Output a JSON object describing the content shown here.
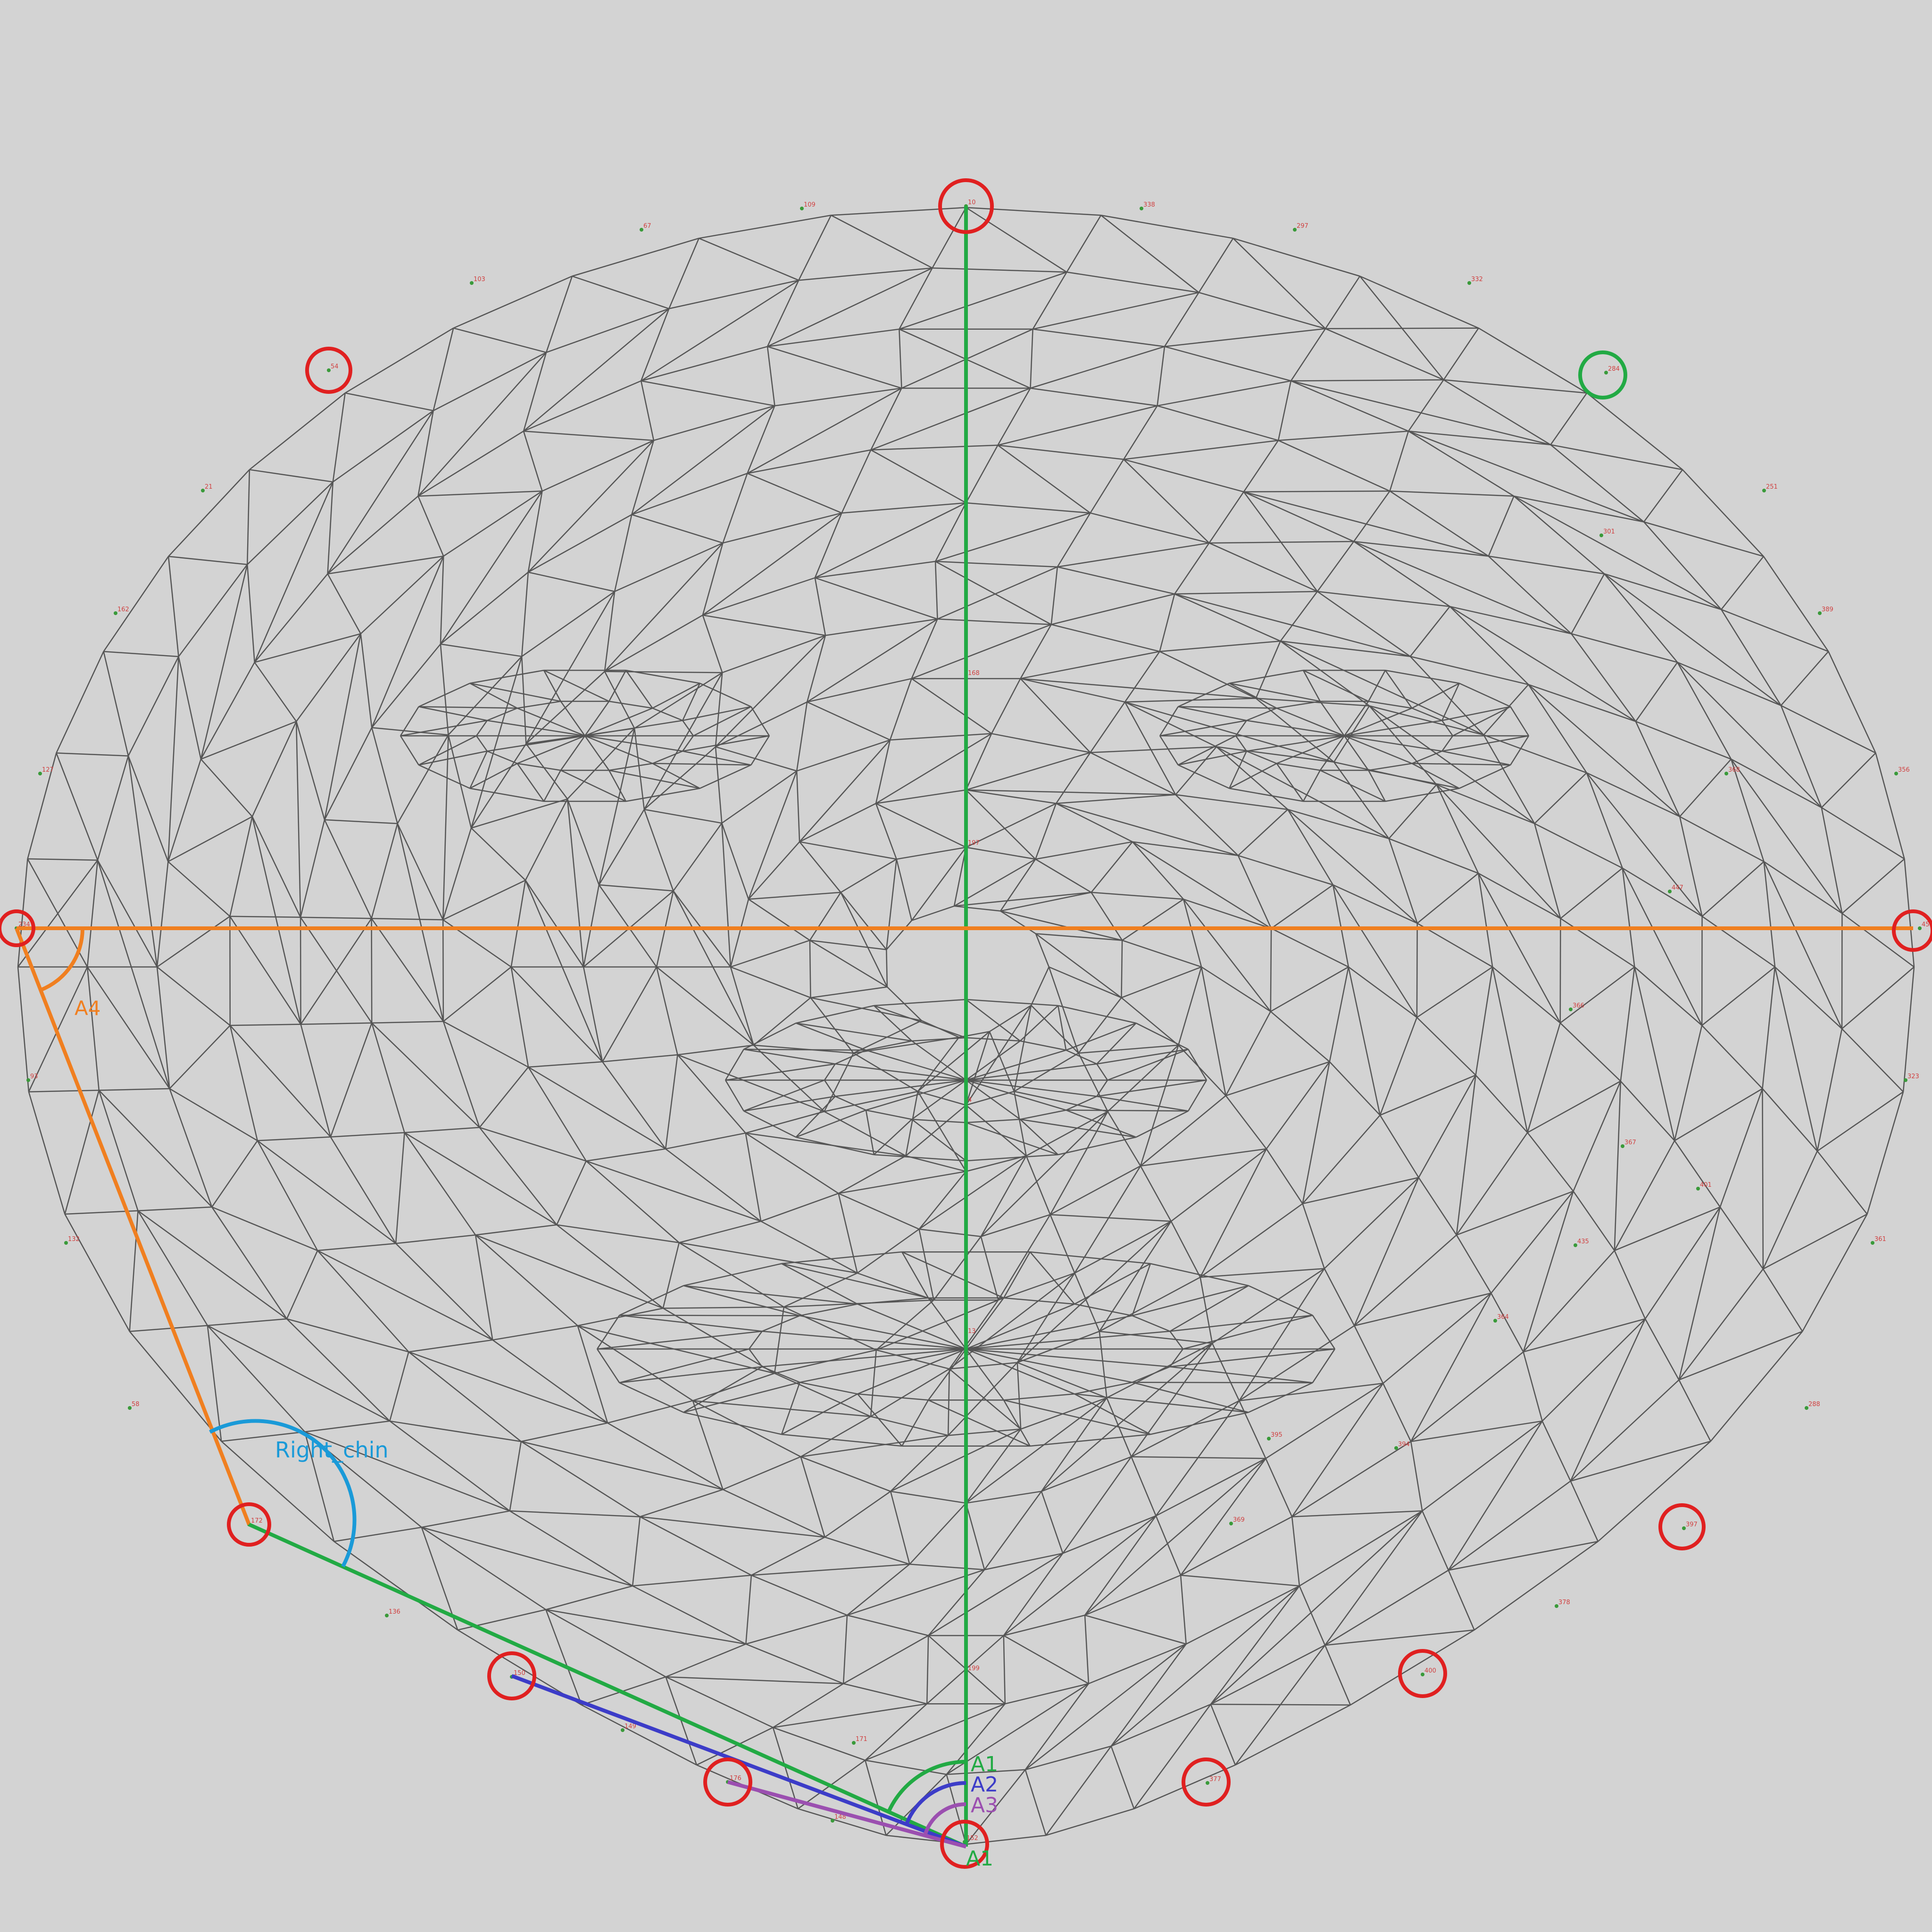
{
  "colors": {
    "background": "#d3d3d3",
    "mesh": "#555555",
    "landmark_circle": "#e02020",
    "reference_circle": "#22aa44",
    "green_line": "#22aa44",
    "orange_line": "#f07f20",
    "blue_line": "#3c3cc8",
    "purple_line": "#9b4fb0",
    "cyan_arc": "#1a9ad8",
    "vertex_label": "#d04040"
  },
  "labels": {
    "a1_top": "A1",
    "a2": "A2",
    "a3": "A3",
    "a1_bottom": "A1",
    "a4": "A4",
    "right_chin": "Right_chin"
  },
  "vertex_ids": {
    "forehead_top": "10",
    "upper_left_1": "109",
    "upper_right_1": "338",
    "upper_right_2": "297",
    "upper_right_3": "332",
    "reference": "284",
    "left_ear": "234",
    "right_ear": "454",
    "right_cheek_1": "389",
    "right_cheek_2": "356",
    "right_cheek_3": "323",
    "right_cheek_4": "361",
    "right_jaw_1": "288",
    "right_jaw_2": "397",
    "right_jaw_3": "378",
    "right_jaw_4": "400",
    "chin_1": "377",
    "chin_2": "152",
    "chin_3": "148",
    "chin_4": "171",
    "nose_bridge": "168",
    "nose_mid": "197",
    "nose_tip": "4",
    "lip_center": "13",
    "chin_mid": "199",
    "mesh_left_top": "67",
    "mesh_left_2": "103",
    "mesh_left_3": "54",
    "mesh_left_4": "21",
    "mesh_left_5": "162",
    "mesh_left_6": "127",
    "mesh_left_7": "93",
    "mesh_left_8": "132",
    "mesh_left_9": "58",
    "mesh_left_10": "172",
    "mesh_left_11": "136",
    "mesh_left_12": "150",
    "mesh_left_13": "149",
    "mesh_left_14": "176",
    "mesh_right_5": "251",
    "mesh_right_7": "301",
    "mesh_right_8": "368",
    "mesh_right_9": "447",
    "mesh_right_10": "366",
    "mesh_right_11": "401",
    "mesh_right_12": "435",
    "mesh_right_13": "367",
    "mesh_right_14": "364",
    "mesh_right_15": "394",
    "mesh_right_16": "395",
    "mesh_right_17": "369"
  }
}
